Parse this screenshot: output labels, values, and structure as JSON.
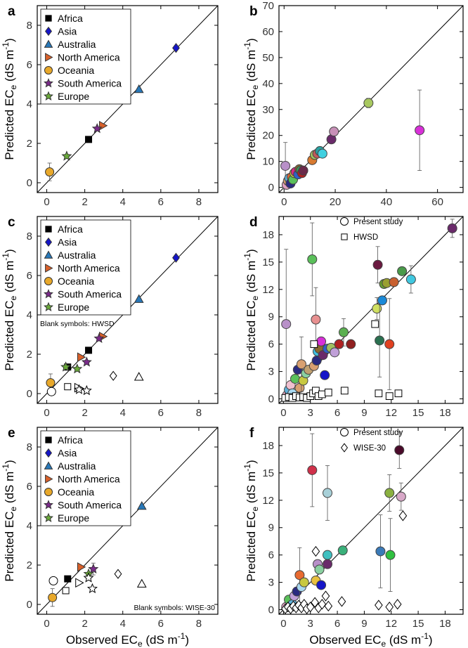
{
  "panel_letters": [
    "a",
    "b",
    "c",
    "d",
    "e",
    "f"
  ],
  "axis_titles": {
    "x_label_main": "Observed EC",
    "y_label_main": "Predicted EC",
    "label_sub": "e",
    "label_unit_open": " (dS m",
    "label_unit_exp": "-1",
    "label_unit_close": ")"
  },
  "legend_continents": [
    {
      "name": "Africa",
      "marker": "square",
      "color": "#000000"
    },
    {
      "name": "Asia",
      "marker": "diamond",
      "color": "#1515c8"
    },
    {
      "name": "Australia",
      "marker": "triangle-up",
      "color": "#2878b8"
    },
    {
      "name": "North America",
      "marker": "triangle-right",
      "color": "#d8602a"
    },
    {
      "name": "Oceania",
      "marker": "circle",
      "color": "#e8a82a"
    },
    {
      "name": "South America",
      "marker": "star",
      "color": "#7a2a8a"
    },
    {
      "name": "Europe",
      "marker": "star",
      "color": "#6aaa3a"
    }
  ],
  "notes": {
    "c": "Blank symbols: HWSD",
    "e": "Blank symbols: WISE-30"
  },
  "legend_compare": {
    "d": [
      {
        "name": "Present study",
        "marker": "circle"
      },
      {
        "name": "HWSD",
        "marker": "square"
      }
    ],
    "f": [
      {
        "name": "Present study",
        "marker": "circle"
      },
      {
        "name": "WISE-30",
        "marker": "diamond"
      }
    ]
  },
  "chart_data": [
    {
      "panel": "a",
      "type": "scatter",
      "xlim": [
        -0.5,
        9
      ],
      "ylim": [
        -0.5,
        9
      ],
      "xticks": [
        0,
        2,
        4,
        6,
        8
      ],
      "yticks": [
        0,
        2,
        4,
        6,
        8
      ],
      "show_x_ticklabels": true,
      "points": [
        {
          "series": "Africa",
          "x": 2.2,
          "y": 2.2
        },
        {
          "series": "Asia",
          "x": 6.8,
          "y": 6.85
        },
        {
          "series": "Australia",
          "x": 4.85,
          "y": 4.75
        },
        {
          "series": "North America",
          "x": 2.95,
          "y": 2.9
        },
        {
          "series": "Oceania",
          "x": 0.15,
          "y": 0.55,
          "err": 0.45
        },
        {
          "series": "South America",
          "x": 2.65,
          "y": 2.75
        },
        {
          "series": "Europe",
          "x": 1.05,
          "y": 1.35
        }
      ]
    },
    {
      "panel": "b",
      "type": "scatter",
      "xlim": [
        -2,
        70
      ],
      "ylim": [
        -2,
        70
      ],
      "xticks": [
        0,
        20,
        40,
        60
      ],
      "yticks": [
        0,
        10,
        20,
        30,
        40,
        50,
        60,
        70
      ],
      "show_x_ticklabels": true,
      "points": [
        {
          "x": 0.5,
          "y": 8.3,
          "err": 9,
          "color": "#b890c8"
        },
        {
          "x": 1,
          "y": 1,
          "color": "#e0a0c0"
        },
        {
          "x": 1.5,
          "y": 2.5,
          "color": "#d8a070"
        },
        {
          "x": 2,
          "y": 3.5,
          "color": "#60b0d8"
        },
        {
          "x": 2.5,
          "y": 1.5,
          "color": "#2a2a80"
        },
        {
          "x": 3,
          "y": 4,
          "color": "#e86a30"
        },
        {
          "x": 3.5,
          "y": 3,
          "color": "#5ac05a"
        },
        {
          "x": 4,
          "y": 5.5,
          "color": "#c8c840"
        },
        {
          "x": 4.5,
          "y": 6,
          "color": "#d82880"
        },
        {
          "x": 5.5,
          "y": 5,
          "color": "#3060c8"
        },
        {
          "x": 6,
          "y": 7,
          "color": "#8a6a30"
        },
        {
          "x": 6.5,
          "y": 6.5,
          "color": "#3a9a5a"
        },
        {
          "x": 7,
          "y": 5.5,
          "color": "#b02020"
        },
        {
          "x": 7.5,
          "y": 6.5,
          "color": "#6a2a4a"
        },
        {
          "x": 11,
          "y": 10.5,
          "color": "#d87a30"
        },
        {
          "x": 12,
          "y": 12.5,
          "color": "#a0c060"
        },
        {
          "x": 13,
          "y": 13,
          "color": "#c05a5a"
        },
        {
          "x": 14,
          "y": 14,
          "color": "#2aa0a0"
        },
        {
          "x": 15,
          "y": 13,
          "color": "#40d0e0"
        },
        {
          "x": 18.5,
          "y": 18.5,
          "color": "#6a2a6a"
        },
        {
          "x": 19.5,
          "y": 21.5,
          "color": "#c890b8"
        },
        {
          "x": 33,
          "y": 32.5,
          "err": 1.8,
          "color": "#a8c860"
        },
        {
          "x": 53,
          "y": 22,
          "err": 15.5,
          "color": "#d830d8"
        }
      ]
    },
    {
      "panel": "c",
      "type": "scatter",
      "xlim": [
        -0.5,
        9
      ],
      "ylim": [
        -0.5,
        9
      ],
      "xticks": [
        0,
        2,
        4,
        6,
        8
      ],
      "yticks": [
        0,
        2,
        4,
        6,
        8
      ],
      "show_x_ticklabels": true,
      "points": [
        {
          "series": "Africa",
          "x": 1.1,
          "y": 1.35
        },
        {
          "series": "Africa",
          "x": 2.2,
          "y": 2.2
        },
        {
          "series": "Asia",
          "x": 6.8,
          "y": 6.9
        },
        {
          "series": "Australia",
          "x": 4.85,
          "y": 4.8
        },
        {
          "series": "North America",
          "x": 1.8,
          "y": 1.85
        },
        {
          "series": "North America",
          "x": 2.95,
          "y": 2.9
        },
        {
          "series": "Oceania",
          "x": 0.2,
          "y": 0.55,
          "err": 0.45
        },
        {
          "series": "South America",
          "x": 2.1,
          "y": 1.6
        },
        {
          "series": "South America",
          "x": 2.75,
          "y": 2.8
        },
        {
          "series": "Europe",
          "x": 1.0,
          "y": 1.35
        },
        {
          "series": "Europe",
          "x": 1.6,
          "y": 1.25
        },
        {
          "series": "blank",
          "marker": "circle",
          "x": 0.25,
          "y": 0.1
        },
        {
          "series": "blank",
          "marker": "square",
          "x": 1.1,
          "y": 0.35
        },
        {
          "series": "blank",
          "marker": "triangle-right",
          "x": 1.65,
          "y": 0.3
        },
        {
          "series": "blank",
          "marker": "star",
          "x": 1.7,
          "y": 0.2
        },
        {
          "series": "blank",
          "marker": "star",
          "x": 2.1,
          "y": 0.15
        },
        {
          "series": "blank",
          "marker": "diamond",
          "x": 3.5,
          "y": 0.9
        },
        {
          "series": "blank",
          "marker": "triangle-up",
          "x": 4.85,
          "y": 0.85
        }
      ]
    },
    {
      "panel": "d",
      "type": "scatter",
      "xlim": [
        -0.5,
        20
      ],
      "ylim": [
        -0.5,
        20
      ],
      "xticks": [
        0,
        3,
        6,
        9,
        12,
        15,
        18
      ],
      "yticks": [
        0,
        3,
        6,
        9,
        12,
        15,
        18
      ],
      "show_x_ticklabels": true,
      "points": [
        {
          "x": 0.3,
          "y": 8.2,
          "err": 8.2,
          "color": "#b890c8"
        },
        {
          "x": 0.4,
          "y": 0.4,
          "color": "#e0a0c0"
        },
        {
          "x": 0.6,
          "y": 1.0,
          "color": "#60b0d8"
        },
        {
          "x": 0.8,
          "y": 1.5,
          "color": "#f0c0d0"
        },
        {
          "x": 1.0,
          "y": 0.6,
          "color": "#a8d8f0"
        },
        {
          "x": 1.3,
          "y": 2.2,
          "color": "#5ac05a"
        },
        {
          "x": 1.6,
          "y": 3.2,
          "color": "#2a2a80"
        },
        {
          "x": 1.8,
          "y": 1.2,
          "color": "#d8a070"
        },
        {
          "x": 2.0,
          "y": 3.8,
          "err": 3,
          "color": "#d8a070"
        },
        {
          "x": 2.2,
          "y": 2.0,
          "color": "#c8c840"
        },
        {
          "x": 2.5,
          "y": 2.8,
          "color": "#8ad0a0"
        },
        {
          "x": 2.8,
          "y": 3.2,
          "color": "#c0a070"
        },
        {
          "x": 3.2,
          "y": 15.3,
          "err": 4,
          "color": "#5ac05a"
        },
        {
          "x": 3.4,
          "y": 3.6,
          "color": "#d8a070"
        },
        {
          "x": 3.6,
          "y": 8.7,
          "err": 3.5,
          "color": "#e89090"
        },
        {
          "x": 3.7,
          "y": 4.2,
          "color": "#2a2a80"
        },
        {
          "x": 3.8,
          "y": 5.2,
          "color": "#40c0e0"
        },
        {
          "x": 4.0,
          "y": 5.5,
          "color": "#8a6a30"
        },
        {
          "x": 4.2,
          "y": 6.3,
          "color": "#d830d8"
        },
        {
          "x": 4.4,
          "y": 4.8,
          "color": "#6a2a6a"
        },
        {
          "x": 4.6,
          "y": 2.6,
          "color": "#1515c8"
        },
        {
          "x": 4.9,
          "y": 5.5,
          "color": "#3060c8"
        },
        {
          "x": 5.3,
          "y": 5.6,
          "color": "#a0c060"
        },
        {
          "x": 5.7,
          "y": 5.1,
          "color": "#c0a0d8"
        },
        {
          "x": 6.2,
          "y": 6.0,
          "color": "#b02020"
        },
        {
          "x": 6.7,
          "y": 7.3,
          "err": 1.5,
          "color": "#5ab050"
        },
        {
          "x": 7.5,
          "y": 6.0,
          "color": "#902020"
        },
        {
          "x": 10.4,
          "y": 9.9,
          "err": 1.2,
          "color": "#d0e060"
        },
        {
          "x": 10.5,
          "y": 14.7,
          "err": 2,
          "color": "#6a1a40"
        },
        {
          "x": 10.7,
          "y": 6.4,
          "err": 4,
          "color": "#2a7050"
        },
        {
          "x": 11.0,
          "y": 10.8,
          "color": "#1a8ad8"
        },
        {
          "x": 11.2,
          "y": 12.6,
          "color": "#6aa030"
        },
        {
          "x": 11.5,
          "y": 12.7,
          "color": "#9aa030"
        },
        {
          "x": 11.8,
          "y": 6.0,
          "err": 5,
          "color": "#e04020"
        },
        {
          "x": 12.3,
          "y": 12.8,
          "color": "#c86030"
        },
        {
          "x": 13.2,
          "y": 14.0,
          "color": "#4a9a4a"
        },
        {
          "x": 14.2,
          "y": 13.1,
          "err": 1.5,
          "color": "#40c8e0"
        },
        {
          "x": 18.8,
          "y": 18.7,
          "err": 1,
          "color": "#6a2a6a"
        },
        {
          "x": 3.4,
          "y": 6.0,
          "marker": "square"
        },
        {
          "x": 10.2,
          "y": 8.2,
          "marker": "square"
        },
        {
          "x": 0.2,
          "y": 0.1,
          "marker": "square"
        },
        {
          "x": 0.6,
          "y": 0.2,
          "marker": "square"
        },
        {
          "x": 1.0,
          "y": 0.1,
          "marker": "square"
        },
        {
          "x": 1.4,
          "y": 0.3,
          "marker": "square"
        },
        {
          "x": 1.8,
          "y": 0.15,
          "marker": "square"
        },
        {
          "x": 2.2,
          "y": 0.2,
          "marker": "square"
        },
        {
          "x": 2.6,
          "y": 0.1,
          "marker": "square"
        },
        {
          "x": 3.0,
          "y": 0.3,
          "marker": "square"
        },
        {
          "x": 3.3,
          "y": 0.6,
          "marker": "square"
        },
        {
          "x": 3.6,
          "y": 0.9,
          "marker": "square"
        },
        {
          "x": 3.9,
          "y": 0.3,
          "marker": "square"
        },
        {
          "x": 4.3,
          "y": 0.5,
          "marker": "square"
        },
        {
          "x": 5.0,
          "y": 0.7,
          "marker": "square"
        },
        {
          "x": 6.8,
          "y": 0.9,
          "marker": "square"
        },
        {
          "x": 10.6,
          "y": 0.6,
          "marker": "square"
        },
        {
          "x": 11.8,
          "y": 0.3,
          "marker": "square"
        },
        {
          "x": 12.8,
          "y": 0.6,
          "marker": "square"
        }
      ]
    },
    {
      "panel": "e",
      "type": "scatter",
      "xlim": [
        -0.5,
        9
      ],
      "ylim": [
        -0.5,
        9
      ],
      "xticks": [
        0,
        2,
        4,
        6,
        8
      ],
      "yticks": [
        0,
        2,
        4,
        6,
        8
      ],
      "show_x_ticklabels": true,
      "points": [
        {
          "series": "Africa",
          "x": 1.1,
          "y": 1.3
        },
        {
          "series": "Australia",
          "x": 5.0,
          "y": 5.0
        },
        {
          "series": "North America",
          "x": 1.8,
          "y": 1.9
        },
        {
          "series": "Oceania",
          "x": 0.3,
          "y": 0.35,
          "err": 0.45
        },
        {
          "series": "South America",
          "x": 2.45,
          "y": 1.8,
          "err": 0.3
        },
        {
          "series": "Europe",
          "x": 2.2,
          "y": 1.55
        },
        {
          "series": "blank",
          "marker": "circle",
          "x": 0.35,
          "y": 1.2
        },
        {
          "series": "blank",
          "marker": "square",
          "x": 1.0,
          "y": 0.7
        },
        {
          "series": "blank",
          "marker": "triangle-right",
          "x": 1.7,
          "y": 1.1
        },
        {
          "series": "blank",
          "marker": "star",
          "x": 2.2,
          "y": 1.35
        },
        {
          "series": "blank",
          "marker": "star",
          "x": 2.4,
          "y": 0.8
        },
        {
          "series": "blank",
          "marker": "diamond",
          "x": 3.75,
          "y": 1.55
        },
        {
          "series": "blank",
          "marker": "triangle-up",
          "x": 5.0,
          "y": 1.05
        }
      ]
    },
    {
      "panel": "f",
      "type": "scatter",
      "xlim": [
        -0.5,
        20
      ],
      "ylim": [
        -0.5,
        20
      ],
      "xticks": [
        0,
        3,
        6,
        9,
        12,
        15,
        18
      ],
      "yticks": [
        0,
        3,
        6,
        9,
        12,
        15,
        18
      ],
      "show_x_ticklabels": true,
      "points": [
        {
          "x": 0.3,
          "y": 0.3,
          "color": "#e0a0c0"
        },
        {
          "x": 0.6,
          "y": 1.1,
          "color": "#5ac05a"
        },
        {
          "x": 1.0,
          "y": 0.6,
          "color": "#60b0d8"
        },
        {
          "x": 1.2,
          "y": 1.5,
          "color": "#c0a0d8"
        },
        {
          "x": 1.5,
          "y": 2.0,
          "color": "#2a2a80"
        },
        {
          "x": 1.8,
          "y": 3.8,
          "err": 3,
          "color": "#e86a30"
        },
        {
          "x": 2.0,
          "y": 2.5,
          "color": "#a8d8f0"
        },
        {
          "x": 2.3,
          "y": 3.0,
          "color": "#c8c840"
        },
        {
          "x": 3.2,
          "y": 15.3,
          "err": 4,
          "color": "#d0304a"
        },
        {
          "x": 3.6,
          "y": 3.2,
          "color": "#e8c040"
        },
        {
          "x": 3.8,
          "y": 5.0,
          "color": "#b890c8"
        },
        {
          "x": 4.0,
          "y": 4.4,
          "color": "#8ad0a0"
        },
        {
          "x": 4.2,
          "y": 2.7,
          "color": "#1515c8"
        },
        {
          "x": 4.9,
          "y": 12.8,
          "err": 3,
          "color": "#a8d0d8"
        },
        {
          "x": 4.9,
          "y": 6.0,
          "color": "#40c0c0"
        },
        {
          "x": 4.9,
          "y": 5.0,
          "color": "#6a2a6a"
        },
        {
          "x": 6.6,
          "y": 6.5,
          "color": "#3ab07a"
        },
        {
          "x": 10.8,
          "y": 6.4,
          "err": 4,
          "color": "#3a7ab8"
        },
        {
          "x": 11.8,
          "y": 12.8,
          "err": 2,
          "color": "#8ab040"
        },
        {
          "x": 11.9,
          "y": 6.0,
          "err": 4,
          "color": "#30c040"
        },
        {
          "x": 12.9,
          "y": 17.5,
          "err": 2,
          "color": "#4a0a2a"
        },
        {
          "x": 13.1,
          "y": 12.4,
          "err": 1.5,
          "color": "#d8a8c8"
        },
        {
          "x": 13.3,
          "y": 10.3,
          "marker": "diamond"
        },
        {
          "x": 3.6,
          "y": 6.4,
          "marker": "diamond"
        },
        {
          "x": 0.2,
          "y": 0.1,
          "marker": "diamond"
        },
        {
          "x": 0.5,
          "y": 0.3,
          "marker": "diamond"
        },
        {
          "x": 0.8,
          "y": 0.1,
          "marker": "diamond"
        },
        {
          "x": 1.1,
          "y": 0.4,
          "marker": "diamond"
        },
        {
          "x": 1.4,
          "y": 0.2,
          "marker": "diamond"
        },
        {
          "x": 1.7,
          "y": 0.5,
          "marker": "diamond"
        },
        {
          "x": 2.0,
          "y": 0.2,
          "marker": "diamond"
        },
        {
          "x": 2.3,
          "y": 0.6,
          "marker": "diamond"
        },
        {
          "x": 2.6,
          "y": 0.1,
          "marker": "diamond"
        },
        {
          "x": 3.0,
          "y": 0.3,
          "marker": "diamond"
        },
        {
          "x": 3.5,
          "y": 0.8,
          "marker": "diamond"
        },
        {
          "x": 3.9,
          "y": 0.2,
          "marker": "diamond"
        },
        {
          "x": 4.3,
          "y": 0.6,
          "marker": "diamond"
        },
        {
          "x": 4.7,
          "y": 1.5,
          "marker": "diamond"
        },
        {
          "x": 5.0,
          "y": 0.4,
          "marker": "diamond"
        },
        {
          "x": 6.5,
          "y": 0.9,
          "marker": "diamond"
        },
        {
          "x": 10.6,
          "y": 0.5,
          "marker": "diamond"
        },
        {
          "x": 11.8,
          "y": 0.3,
          "marker": "diamond"
        },
        {
          "x": 12.7,
          "y": 0.6,
          "marker": "diamond"
        }
      ]
    }
  ]
}
